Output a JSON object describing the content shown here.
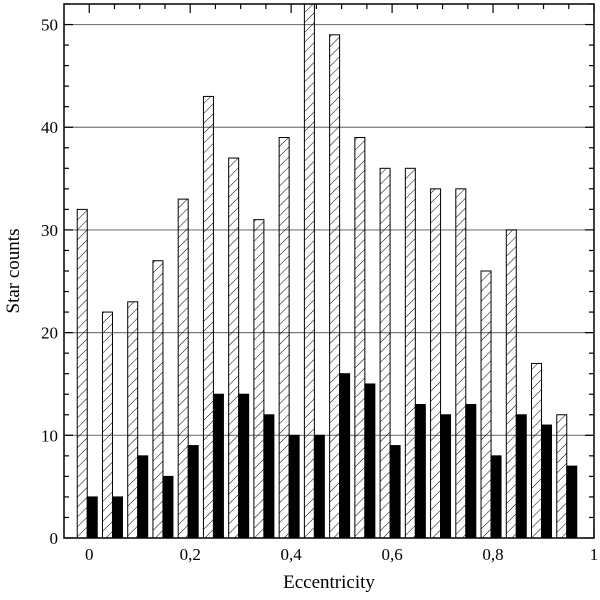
{
  "chart_data": {
    "type": "bar",
    "title": "",
    "xlabel": "Eccentricity",
    "ylabel": "Star counts",
    "xlim": [
      -0.05,
      1.0
    ],
    "ylim": [
      0,
      52
    ],
    "x_ticks": [
      0,
      0.2,
      0.4,
      0.6,
      0.8,
      1
    ],
    "x_tick_labels": [
      "0",
      "0,2",
      "0,4",
      "0,6",
      "0,8",
      "1"
    ],
    "y_ticks": [
      0,
      10,
      20,
      30,
      40,
      50
    ],
    "y_tick_labels": [
      "0",
      "10",
      "20",
      "30",
      "40",
      "50"
    ],
    "grid": "horizontal",
    "legend": "none",
    "bin_width": 0.05,
    "x": [
      0,
      0.05,
      0.1,
      0.15,
      0.2,
      0.25,
      0.3,
      0.35,
      0.4,
      0.45,
      0.5,
      0.55,
      0.6,
      0.65,
      0.7,
      0.75,
      0.8,
      0.85,
      0.9,
      0.95
    ],
    "series": [
      {
        "style": "hatched",
        "color": "#000000",
        "values": [
          32,
          22,
          23,
          27,
          33,
          43,
          37,
          31,
          39,
          52,
          49,
          39,
          36,
          36,
          34,
          34,
          26,
          30,
          17,
          12
        ]
      },
      {
        "style": "solid",
        "color": "#000000",
        "values": [
          4,
          4,
          8,
          6,
          9,
          14,
          14,
          12,
          10,
          10,
          16,
          15,
          9,
          13,
          12,
          13,
          8,
          12,
          11,
          7
        ]
      }
    ]
  }
}
